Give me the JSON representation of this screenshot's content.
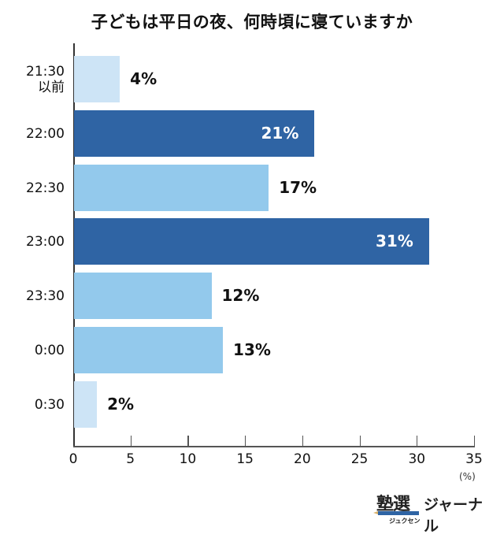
{
  "chart_data": {
    "type": "bar",
    "orientation": "horizontal",
    "title": "子どもは平日の夜、何時頃に寝ていますか",
    "categories": [
      "21:30\n以前",
      "22:00",
      "22:30",
      "23:00",
      "23:30",
      "0:00",
      "0:30"
    ],
    "category_lines": [
      [
        "21:30",
        "以前"
      ],
      [
        "22:00"
      ],
      [
        "22:30"
      ],
      [
        "23:00"
      ],
      [
        "23:30"
      ],
      [
        "0:00"
      ],
      [
        "0:30"
      ]
    ],
    "values": [
      4,
      21,
      17,
      31,
      12,
      13,
      2
    ],
    "value_labels": [
      "4%",
      "21%",
      "17%",
      "31%",
      "12%",
      "13%",
      "2%"
    ],
    "bar_colors": [
      "#CDE4F6",
      "#2F64A4",
      "#93C9EC",
      "#2F64A4",
      "#93C9EC",
      "#93C9EC",
      "#CDE4F6"
    ],
    "label_inside": [
      false,
      true,
      false,
      true,
      false,
      false,
      false
    ],
    "xlabel": "",
    "ylabel": "",
    "x_unit": "(%)",
    "xlim": [
      0,
      35
    ],
    "xticks": [
      0,
      5,
      10,
      15,
      20,
      25,
      30,
      35
    ],
    "xtick_labels": [
      "0",
      "5",
      "10",
      "15",
      "20",
      "25",
      "30",
      "35"
    ],
    "grid": false,
    "legend": null
  },
  "colors": {
    "dark": "#2F64A4",
    "mid": "#93C9EC",
    "pale": "#CDE4F6"
  },
  "branding": {
    "logo_main": "塾選",
    "logo_kana": "ジュクセン",
    "logo_sub": "ジャーナル"
  }
}
